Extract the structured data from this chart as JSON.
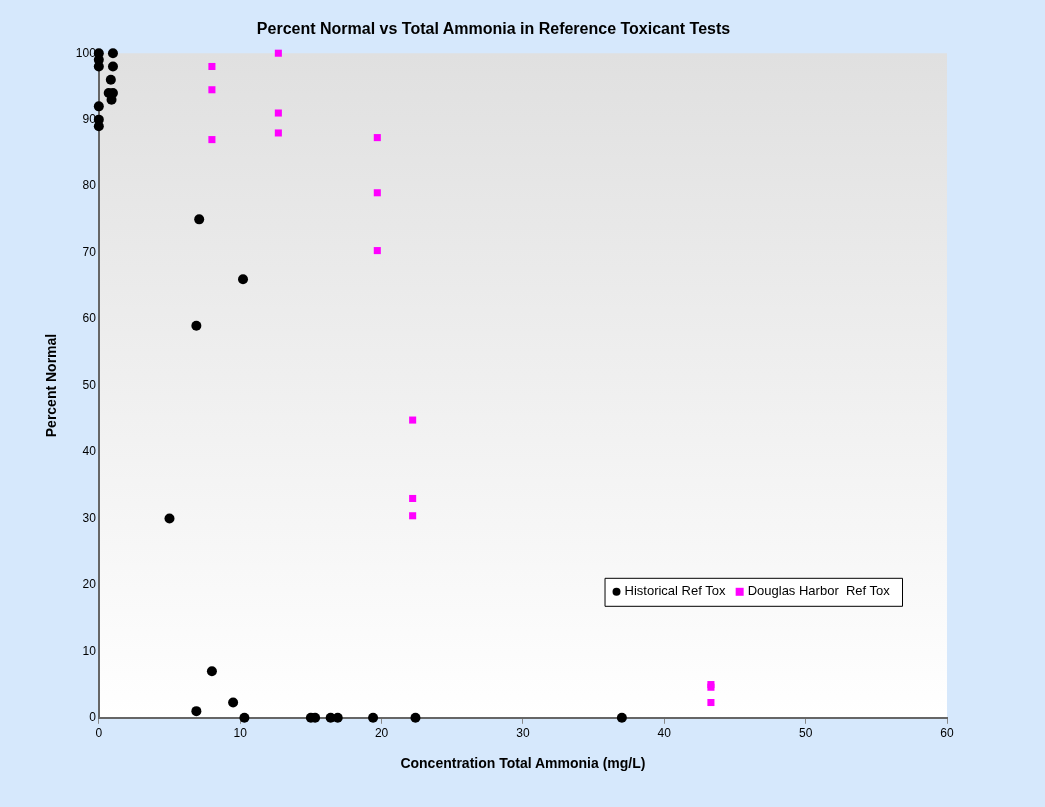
{
  "chart_data": {
    "type": "scatter",
    "title": "Percent Normal vs Total Ammonia in Reference Toxicant Tests",
    "xlabel": "Concentration Total Ammonia (mg/L)",
    "ylabel": "Percent Normal",
    "xlim": [
      0,
      60
    ],
    "xticks": [
      0,
      10,
      20,
      30,
      40,
      50,
      60
    ],
    "ylim": [
      0,
      100
    ],
    "yticks": [
      0,
      10,
      20,
      30,
      40,
      50,
      60,
      70,
      80,
      90,
      100
    ],
    "grid": false,
    "legend": "bottom right",
    "series": [
      {
        "name": "Historical Ref Tox",
        "color": "#000000",
        "marker": "circle",
        "x": [
          0,
          0,
          0,
          0,
          0,
          0,
          1,
          1,
          0.85,
          0.7,
          1,
          0.9,
          7.1,
          10.2,
          6.9,
          5,
          8,
          6.9,
          9.5,
          10.3,
          15,
          15.3,
          16.4,
          16.9,
          19.4,
          22.4,
          37
        ],
        "values": [
          100,
          99,
          98,
          92,
          90,
          89,
          100,
          98,
          96,
          94,
          94,
          93,
          75,
          66,
          59,
          30,
          7,
          1,
          2.3,
          0,
          0,
          0,
          0,
          0,
          0,
          0,
          0
        ]
      },
      {
        "name": "Douglas Harbor  Ref Tox",
        "color": "#ff00ff",
        "marker": "square",
        "x": [
          8,
          8,
          8,
          12.7,
          12.7,
          12.7,
          19.7,
          19.7,
          19.7,
          22.2,
          22.2,
          22.2,
          43.3,
          43.3,
          43.3
        ],
        "values": [
          98,
          94.5,
          87,
          100,
          91,
          88,
          87.3,
          79,
          70.3,
          44.8,
          33,
          30.4,
          5,
          4.6,
          2.3
        ]
      }
    ]
  }
}
